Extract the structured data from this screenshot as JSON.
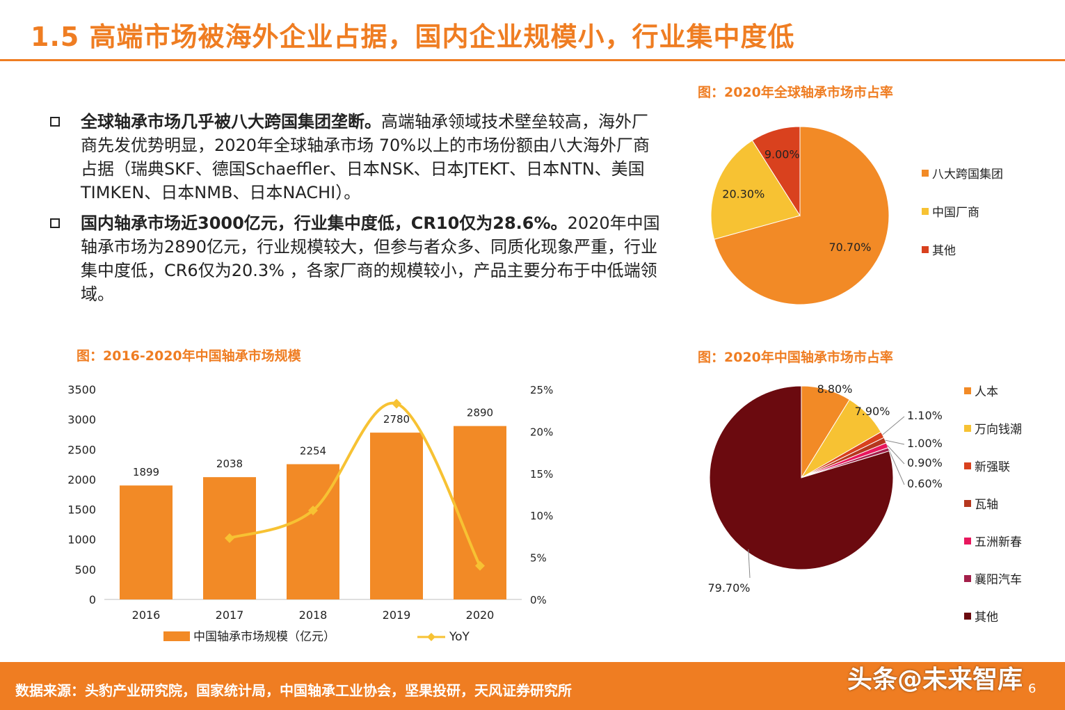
{
  "title": "1.5 高端市场被海外企业占据，国内企业规模小，行业集中度低",
  "bullets": [
    {
      "bold": "全球轴承市场几乎被八大跨国集团垄断。",
      "text": "高端轴承领域技术壁垒较高，海外厂商先发优势明显，2020年全球轴承市场 70%以上的市场份额由八大海外厂商占据（瑞典SKF、德国Schaeffler、日本NSK、日本JTEKT、日本NTN、美国TIMKEN、日本NMB、日本NACHI）。"
    },
    {
      "bold": "国内轴承市场近3000亿元，行业集中度低，CR10仅为28.6%。",
      "text": "2020年中国轴承市场为2890亿元，行业规模较大，但参与者众多、同质化现象严重，行业集中度低，CR6仅为20.3% ，各家厂商的规模较小，产品主要分布于中低端领域。"
    }
  ],
  "footer": {
    "source": "数据来源：头豹产业研究院，国家统计局，中国轴承工业协会，坚果投研，天风证券研究所",
    "watermark": "头条@未来智库",
    "page": "6"
  },
  "chart_data": [
    {
      "type": "bar",
      "title": "图：2016-2020年中国轴承市场规模",
      "categories": [
        "2016",
        "2017",
        "2018",
        "2019",
        "2020"
      ],
      "series": [
        {
          "name": "中国轴承市场规模（亿元）",
          "type": "bar",
          "axis": "left",
          "values": [
            1899,
            2038,
            2254,
            2780,
            2890
          ],
          "color": "#f28a26"
        },
        {
          "name": "YoY",
          "type": "line",
          "axis": "right",
          "values": [
            null,
            7.3,
            10.6,
            23.3,
            4.0
          ],
          "color": "#f7c233"
        }
      ],
      "y_left": {
        "min": 0,
        "max": 3500,
        "ticks": [
          "0",
          "500",
          "1000",
          "1500",
          "2000",
          "2500",
          "3000",
          "3500"
        ]
      },
      "y_right": {
        "min": 0,
        "max": 25,
        "ticks": [
          "0%",
          "5%",
          "10%",
          "15%",
          "20%",
          "25%"
        ]
      },
      "grid": false
    },
    {
      "type": "pie",
      "title": "图：2020年全球轴承市场市占率",
      "labels": [
        "八大跨国集团",
        "中国厂商",
        "其他"
      ],
      "values": [
        70.7,
        20.3,
        9.0
      ],
      "value_labels": [
        "70.70%",
        "20.30%",
        "9.00%"
      ],
      "colors": [
        "#f28a26",
        "#f7c233",
        "#d9411e"
      ],
      "legend": "right"
    },
    {
      "type": "pie",
      "title": "图：2020年中国轴承市场市占率",
      "labels": [
        "人本",
        "万向钱潮",
        "新强联",
        "瓦轴",
        "五洲新春",
        "襄阳汽车",
        "其他"
      ],
      "values": [
        8.8,
        7.9,
        1.1,
        1.0,
        0.9,
        0.6,
        79.7
      ],
      "value_labels": [
        "8.80%",
        "7.90%",
        "1.10%",
        "1.00%",
        "0.90%",
        "0.60%",
        "79.70%"
      ],
      "colors": [
        "#f28a26",
        "#f7c233",
        "#d9411e",
        "#b5371e",
        "#e8175d",
        "#a31f4a",
        "#6b0a0f"
      ],
      "legend": "right"
    }
  ]
}
